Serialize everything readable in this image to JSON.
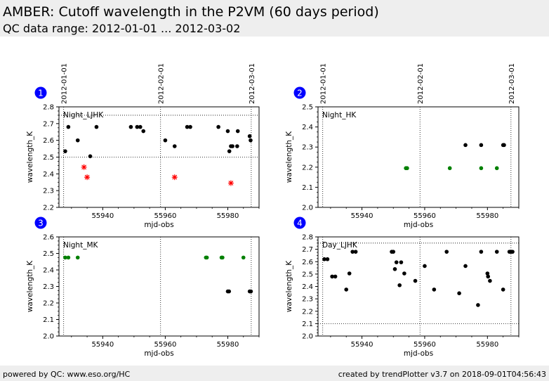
{
  "header": {
    "title": "AMBER: Cutoff wavelength in the P2VM (60 days period)",
    "subtitle": "QC data range: 2012-01-01 ... 2012-03-02"
  },
  "footer": {
    "left": "powered by QC: www.eso.org/HC",
    "right": "created by trendPlotter v3.7 on 2018-09-01T04:56:43"
  },
  "colors": {
    "primary": "#000000",
    "secondary": "#ff0000",
    "tertiary": "#008000",
    "badge": "#0000ff",
    "header_bg": "#eeeeee"
  },
  "chart_data": [
    {
      "type": "scatter",
      "panel_number": "1",
      "label": "Night_LJHK",
      "xlabel": "mjd-obs",
      "ylabel": "wavelength_K",
      "xlim": [
        55926,
        55990
      ],
      "ylim": [
        2.2,
        2.8
      ],
      "xticks": [
        55940,
        55960,
        55980
      ],
      "yticks": [
        2.2,
        2.3,
        2.4,
        2.5,
        2.6,
        2.7,
        2.8
      ],
      "ytick_labels": [
        "2.2",
        "2.3",
        "2.4",
        "2.5",
        "2.6",
        "2.7",
        "2.8"
      ],
      "hlines": [
        2.5,
        2.75
      ],
      "date_markers": [
        {
          "label": "2012-01-01",
          "x": 55927.5
        },
        {
          "label": "2012-02-01",
          "x": 55958.5
        },
        {
          "label": "2012-03-01",
          "x": 55987.5
        }
      ],
      "series": [
        {
          "color": "primary",
          "marker": "dot",
          "x": [
            55928,
            55929,
            55932,
            55936,
            55938,
            55949,
            55951,
            55952,
            55953,
            55960,
            55963,
            55967,
            55968,
            55977,
            55980,
            55980.5,
            55981,
            55981.5,
            55983,
            55983.2,
            55987,
            55987.3
          ],
          "y": [
            2.535,
            2.68,
            2.6,
            2.505,
            2.68,
            2.68,
            2.68,
            2.68,
            2.655,
            2.6,
            2.565,
            2.68,
            2.68,
            2.68,
            2.655,
            2.535,
            2.565,
            2.565,
            2.565,
            2.655,
            2.625,
            2.6
          ]
        },
        {
          "color": "secondary",
          "marker": "star",
          "x": [
            55934,
            55935,
            55963,
            55981
          ],
          "y": [
            2.44,
            2.38,
            2.38,
            2.345
          ]
        }
      ]
    },
    {
      "type": "scatter",
      "panel_number": "2",
      "label": "Night_HK",
      "xlabel": "mjd-obs",
      "ylabel": "wavelength_K",
      "xlim": [
        55926,
        55990
      ],
      "ylim": [
        2.0,
        2.5
      ],
      "xticks": [
        55940,
        55960,
        55980
      ],
      "yticks": [
        2.0,
        2.1,
        2.2,
        2.3,
        2.4,
        2.5
      ],
      "ytick_labels": [
        "2.0",
        "2.1",
        "2.2",
        "2.3",
        "2.4",
        "2.5"
      ],
      "hlines": [],
      "date_markers": [
        {
          "label": "2012-01-01",
          "x": 55927.5
        },
        {
          "label": "2012-02-01",
          "x": 55958.5
        },
        {
          "label": "2012-03-01",
          "x": 55987.5
        }
      ],
      "series": [
        {
          "color": "primary",
          "marker": "dot",
          "x": [
            55973,
            55978,
            55985,
            55985.3
          ],
          "y": [
            2.31,
            2.31,
            2.31,
            2.31
          ]
        },
        {
          "color": "tertiary",
          "marker": "dot",
          "x": [
            55954,
            55954.4,
            55968,
            55978,
            55983
          ],
          "y": [
            2.195,
            2.195,
            2.195,
            2.195,
            2.195
          ]
        }
      ]
    },
    {
      "type": "scatter",
      "panel_number": "3",
      "label": "Night_MK",
      "xlabel": "mjd-obs",
      "ylabel": "wavelength_K",
      "xlim": [
        55926,
        55990
      ],
      "ylim": [
        2.0,
        2.6
      ],
      "xticks": [
        55940,
        55960,
        55980
      ],
      "yticks": [
        2.0,
        2.1,
        2.2,
        2.3,
        2.4,
        2.5,
        2.6
      ],
      "ytick_labels": [
        "2.0",
        "2.1",
        "2.2",
        "2.3",
        "2.4",
        "2.5",
        "2.6"
      ],
      "hlines": [],
      "date_markers": [
        {
          "label": "",
          "x": 55927.5
        },
        {
          "label": "",
          "x": 55958.5
        },
        {
          "label": "",
          "x": 55987.5
        }
      ],
      "series": [
        {
          "color": "primary",
          "marker": "dot",
          "x": [
            55980,
            55980.4,
            55987,
            55987.4
          ],
          "y": [
            2.27,
            2.27,
            2.27,
            2.27
          ]
        },
        {
          "color": "tertiary",
          "marker": "dot",
          "x": [
            55928,
            55929,
            55932,
            55973,
            55973.3,
            55978,
            55978.3,
            55985
          ],
          "y": [
            2.475,
            2.475,
            2.475,
            2.475,
            2.475,
            2.475,
            2.475,
            2.475
          ]
        }
      ]
    },
    {
      "type": "scatter",
      "panel_number": "4",
      "label": "Day_LJHK",
      "xlabel": "mjd-obs",
      "ylabel": "wavelength_K",
      "xlim": [
        55926,
        55990
      ],
      "ylim": [
        2.0,
        2.8
      ],
      "xticks": [
        55940,
        55960,
        55980
      ],
      "yticks": [
        2.0,
        2.1,
        2.2,
        2.3,
        2.4,
        2.5,
        2.6,
        2.7,
        2.8
      ],
      "ytick_labels": [
        "2.0",
        "2.1",
        "2.2",
        "2.3",
        "2.4",
        "2.5",
        "2.6",
        "2.7",
        "2.8"
      ],
      "hlines": [
        2.1,
        2.75
      ],
      "date_markers": [
        {
          "label": "",
          "x": 55927.5
        },
        {
          "label": "",
          "x": 55958.5
        },
        {
          "label": "",
          "x": 55987.5
        }
      ],
      "series": [
        {
          "color": "primary",
          "marker": "dot",
          "x": [
            55928,
            55929,
            55930.5,
            55931.5,
            55935,
            55936,
            55937,
            55938,
            55949.5,
            55950,
            55950.5,
            55951,
            55952,
            55952.5,
            55953.5,
            55957,
            55960,
            55963,
            55967,
            55971,
            55973,
            55977,
            55978,
            55980,
            55980.2,
            55980.8,
            55983,
            55985,
            55987,
            55987.5,
            55988
          ],
          "y": [
            2.62,
            2.62,
            2.48,
            2.48,
            2.375,
            2.505,
            2.68,
            2.68,
            2.68,
            2.68,
            2.54,
            2.595,
            2.41,
            2.595,
            2.505,
            2.445,
            2.565,
            2.375,
            2.68,
            2.345,
            2.565,
            2.25,
            2.68,
            2.505,
            2.48,
            2.445,
            2.68,
            2.375,
            2.68,
            2.68,
            2.68
          ]
        }
      ]
    }
  ]
}
